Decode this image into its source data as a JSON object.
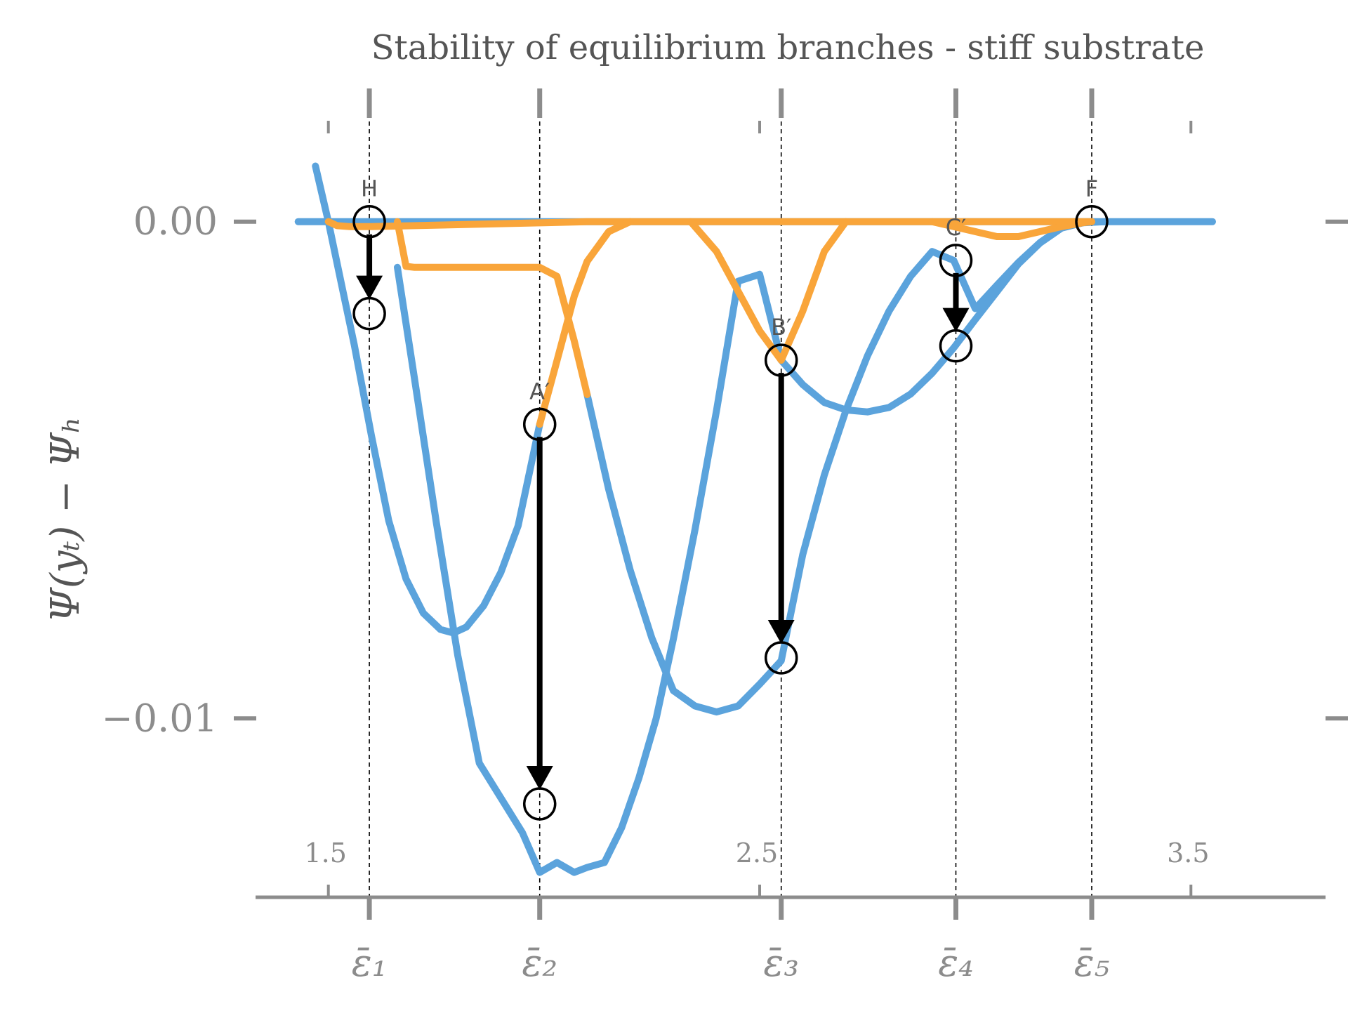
{
  "chart_data": {
    "type": "line",
    "title": "Stability of equilibrium branches - stiff substrate",
    "ylabel": "Ψ(yₜ) − Ψₕ",
    "xlabel": "",
    "xlim": [
      1.45,
      3.55
    ],
    "ylim": [
      -0.0136,
      0.0023
    ],
    "y_ticks": [
      {
        "value": 0.0,
        "label": "0.00"
      },
      {
        "value": -0.01,
        "label": "−0.01"
      }
    ],
    "x_ticks_top": [
      {
        "value": 1.5,
        "label": "1.5"
      },
      {
        "value": 2.5,
        "label": "2.5"
      },
      {
        "value": 3.5,
        "label": "3.5"
      }
    ],
    "x_ticks_bottom": [
      {
        "value": 1.595,
        "label": "ε̄₁"
      },
      {
        "value": 1.99,
        "label": "ε̄₂"
      },
      {
        "value": 2.55,
        "label": "ε̄₃"
      },
      {
        "value": 2.955,
        "label": "ε̄₄"
      },
      {
        "value": 3.27,
        "label": "ε̄₅"
      }
    ],
    "vlines": [
      1.595,
      1.99,
      2.55,
      2.955,
      3.27
    ],
    "colors": {
      "stable": "#5ba3dc",
      "unstable": "#f9a53a",
      "axis": "#8c8c8c",
      "marker": "#000000"
    },
    "series": [
      {
        "role": "stable",
        "x": [
          1.47,
          1.5,
          1.53,
          1.56,
          1.6,
          1.64,
          1.68,
          1.72,
          1.76,
          1.79,
          1.82,
          1.86,
          1.9,
          1.94,
          1.99
        ],
        "y": [
          0.00112,
          0.0,
          -0.00124,
          -0.00248,
          -0.00431,
          -0.00602,
          -0.00719,
          -0.00788,
          -0.00821,
          -0.00828,
          -0.00816,
          -0.00773,
          -0.00706,
          -0.00612,
          -0.00408
        ]
      },
      {
        "role": "stable",
        "x": [
          1.66,
          1.7,
          1.75,
          1.8,
          1.85,
          1.9,
          1.95,
          1.99,
          2.03,
          2.07,
          2.1,
          2.14,
          2.18,
          2.22,
          2.26,
          2.3,
          2.35,
          2.4,
          2.45,
          2.5,
          2.55
        ],
        "y": [
          -0.00092,
          -0.00318,
          -0.00604,
          -0.00873,
          -0.0109,
          -0.0116,
          -0.0123,
          -0.0131,
          -0.0129,
          -0.0131,
          -0.013,
          -0.0129,
          -0.0122,
          -0.0112,
          -0.01,
          -0.0084,
          -0.0062,
          -0.0038,
          -0.0012,
          -0.00106,
          -0.00279
        ]
      },
      {
        "role": "stable",
        "x": [
          2.1,
          2.15,
          2.2,
          2.25,
          2.3,
          2.35,
          2.4,
          2.45,
          2.5,
          2.55,
          2.6,
          2.65,
          2.7,
          2.75,
          2.8,
          2.85,
          2.9,
          2.95,
          3.0,
          3.05,
          3.1,
          3.15,
          3.2,
          3.25,
          3.3,
          3.35,
          3.4,
          3.45,
          3.5,
          3.55
        ],
        "y": [
          -0.00348,
          -0.00539,
          -0.00702,
          -0.00838,
          -0.00944,
          -0.00975,
          -0.00987,
          -0.00975,
          -0.00931,
          -0.00884,
          -0.0067,
          -0.0051,
          -0.0038,
          -0.0027,
          -0.0018,
          -0.0011,
          -0.0006,
          -0.00078,
          -0.00175,
          -0.00128,
          -0.00082,
          -0.00042,
          -0.00012,
          -2e-05,
          0.0,
          0.0,
          0.0,
          0.0,
          0.0,
          0.0
        ]
      },
      {
        "role": "stable",
        "x": [
          2.55,
          2.6,
          2.65,
          2.7,
          2.75,
          2.8,
          2.85,
          2.9,
          2.95,
          3.0,
          3.05,
          3.1,
          3.15,
          3.2,
          3.25,
          3.27
        ],
        "y": [
          -0.00279,
          -0.00328,
          -0.00364,
          -0.00379,
          -0.00383,
          -0.00374,
          -0.00347,
          -0.00305,
          -0.00254,
          -0.00197,
          -0.00141,
          -0.00085,
          -0.00043,
          -0.00013,
          -2e-05,
          0.0
        ]
      },
      {
        "role": "stable",
        "x": [
          1.43,
          3.3
        ],
        "y": [
          0.0,
          0.0
        ]
      },
      {
        "role": "unstable",
        "x": [
          1.5,
          1.52,
          1.55,
          1.6,
          2.0,
          2.1,
          2.2,
          2.3,
          2.4,
          2.5,
          2.55,
          2.6,
          2.7,
          2.8,
          2.95,
          3.1,
          3.27
        ],
        "y": [
          0.0,
          -8e-05,
          -0.0001,
          -0.0001,
          -2e-05,
          0.0,
          0.0,
          0.0,
          0.0,
          0.0,
          0.0,
          0.0,
          0.0,
          0.0,
          0.0,
          0.0,
          0.0
        ]
      },
      {
        "role": "unstable",
        "x": [
          1.66,
          1.68,
          1.7,
          1.75,
          1.8,
          1.85,
          1.9,
          1.95,
          1.99,
          2.03,
          2.07,
          2.1
        ],
        "y": [
          0.0,
          -0.0009,
          -0.00092,
          -0.00092,
          -0.00092,
          -0.00092,
          -0.00092,
          -0.00092,
          -0.00092,
          -0.0011,
          -0.0024,
          -0.00348
        ]
      },
      {
        "role": "unstable",
        "x": [
          1.99,
          2.03,
          2.07,
          2.1,
          2.15,
          2.2
        ],
        "y": [
          -0.00408,
          -0.0028,
          -0.0015,
          -0.0008,
          -0.0002,
          0.0
        ]
      },
      {
        "role": "unstable",
        "x": [
          2.34,
          2.4,
          2.45,
          2.5,
          2.55,
          2.6,
          2.65,
          2.7
        ],
        "y": [
          0.0,
          -0.0006,
          -0.0014,
          -0.0022,
          -0.00279,
          -0.0018,
          -0.0006,
          0.0
        ]
      },
      {
        "role": "unstable",
        "x": [
          2.9,
          2.95,
          3.0,
          3.05,
          3.1,
          3.15,
          3.2,
          3.25,
          3.27
        ],
        "y": [
          0.0,
          -0.0001,
          -0.0002,
          -0.0003,
          -0.0003,
          -0.0002,
          -0.0001,
          -2e-05,
          0.0
        ]
      }
    ],
    "markers": [
      {
        "label": "H",
        "x": 1.595,
        "y": 0.0
      },
      {
        "label": "",
        "x": 1.595,
        "y": -0.00185
      },
      {
        "label": "A′",
        "x": 1.99,
        "y": -0.00408
      },
      {
        "label": "",
        "x": 1.99,
        "y": -0.01172
      },
      {
        "label": "B′",
        "x": 2.55,
        "y": -0.00279
      },
      {
        "label": "",
        "x": 2.55,
        "y": -0.00878
      },
      {
        "label": "C′",
        "x": 2.955,
        "y": -0.00078
      },
      {
        "label": "",
        "x": 2.955,
        "y": -0.0025
      },
      {
        "label": "F",
        "x": 3.27,
        "y": 0.0
      }
    ],
    "arrows": [
      {
        "x": 1.595,
        "from": 0.0,
        "to": -0.00185
      },
      {
        "x": 1.99,
        "from": -0.00408,
        "to": -0.01172
      },
      {
        "x": 2.55,
        "from": -0.00279,
        "to": -0.00878
      },
      {
        "x": 2.955,
        "from": -0.00078,
        "to": -0.0025
      }
    ]
  }
}
